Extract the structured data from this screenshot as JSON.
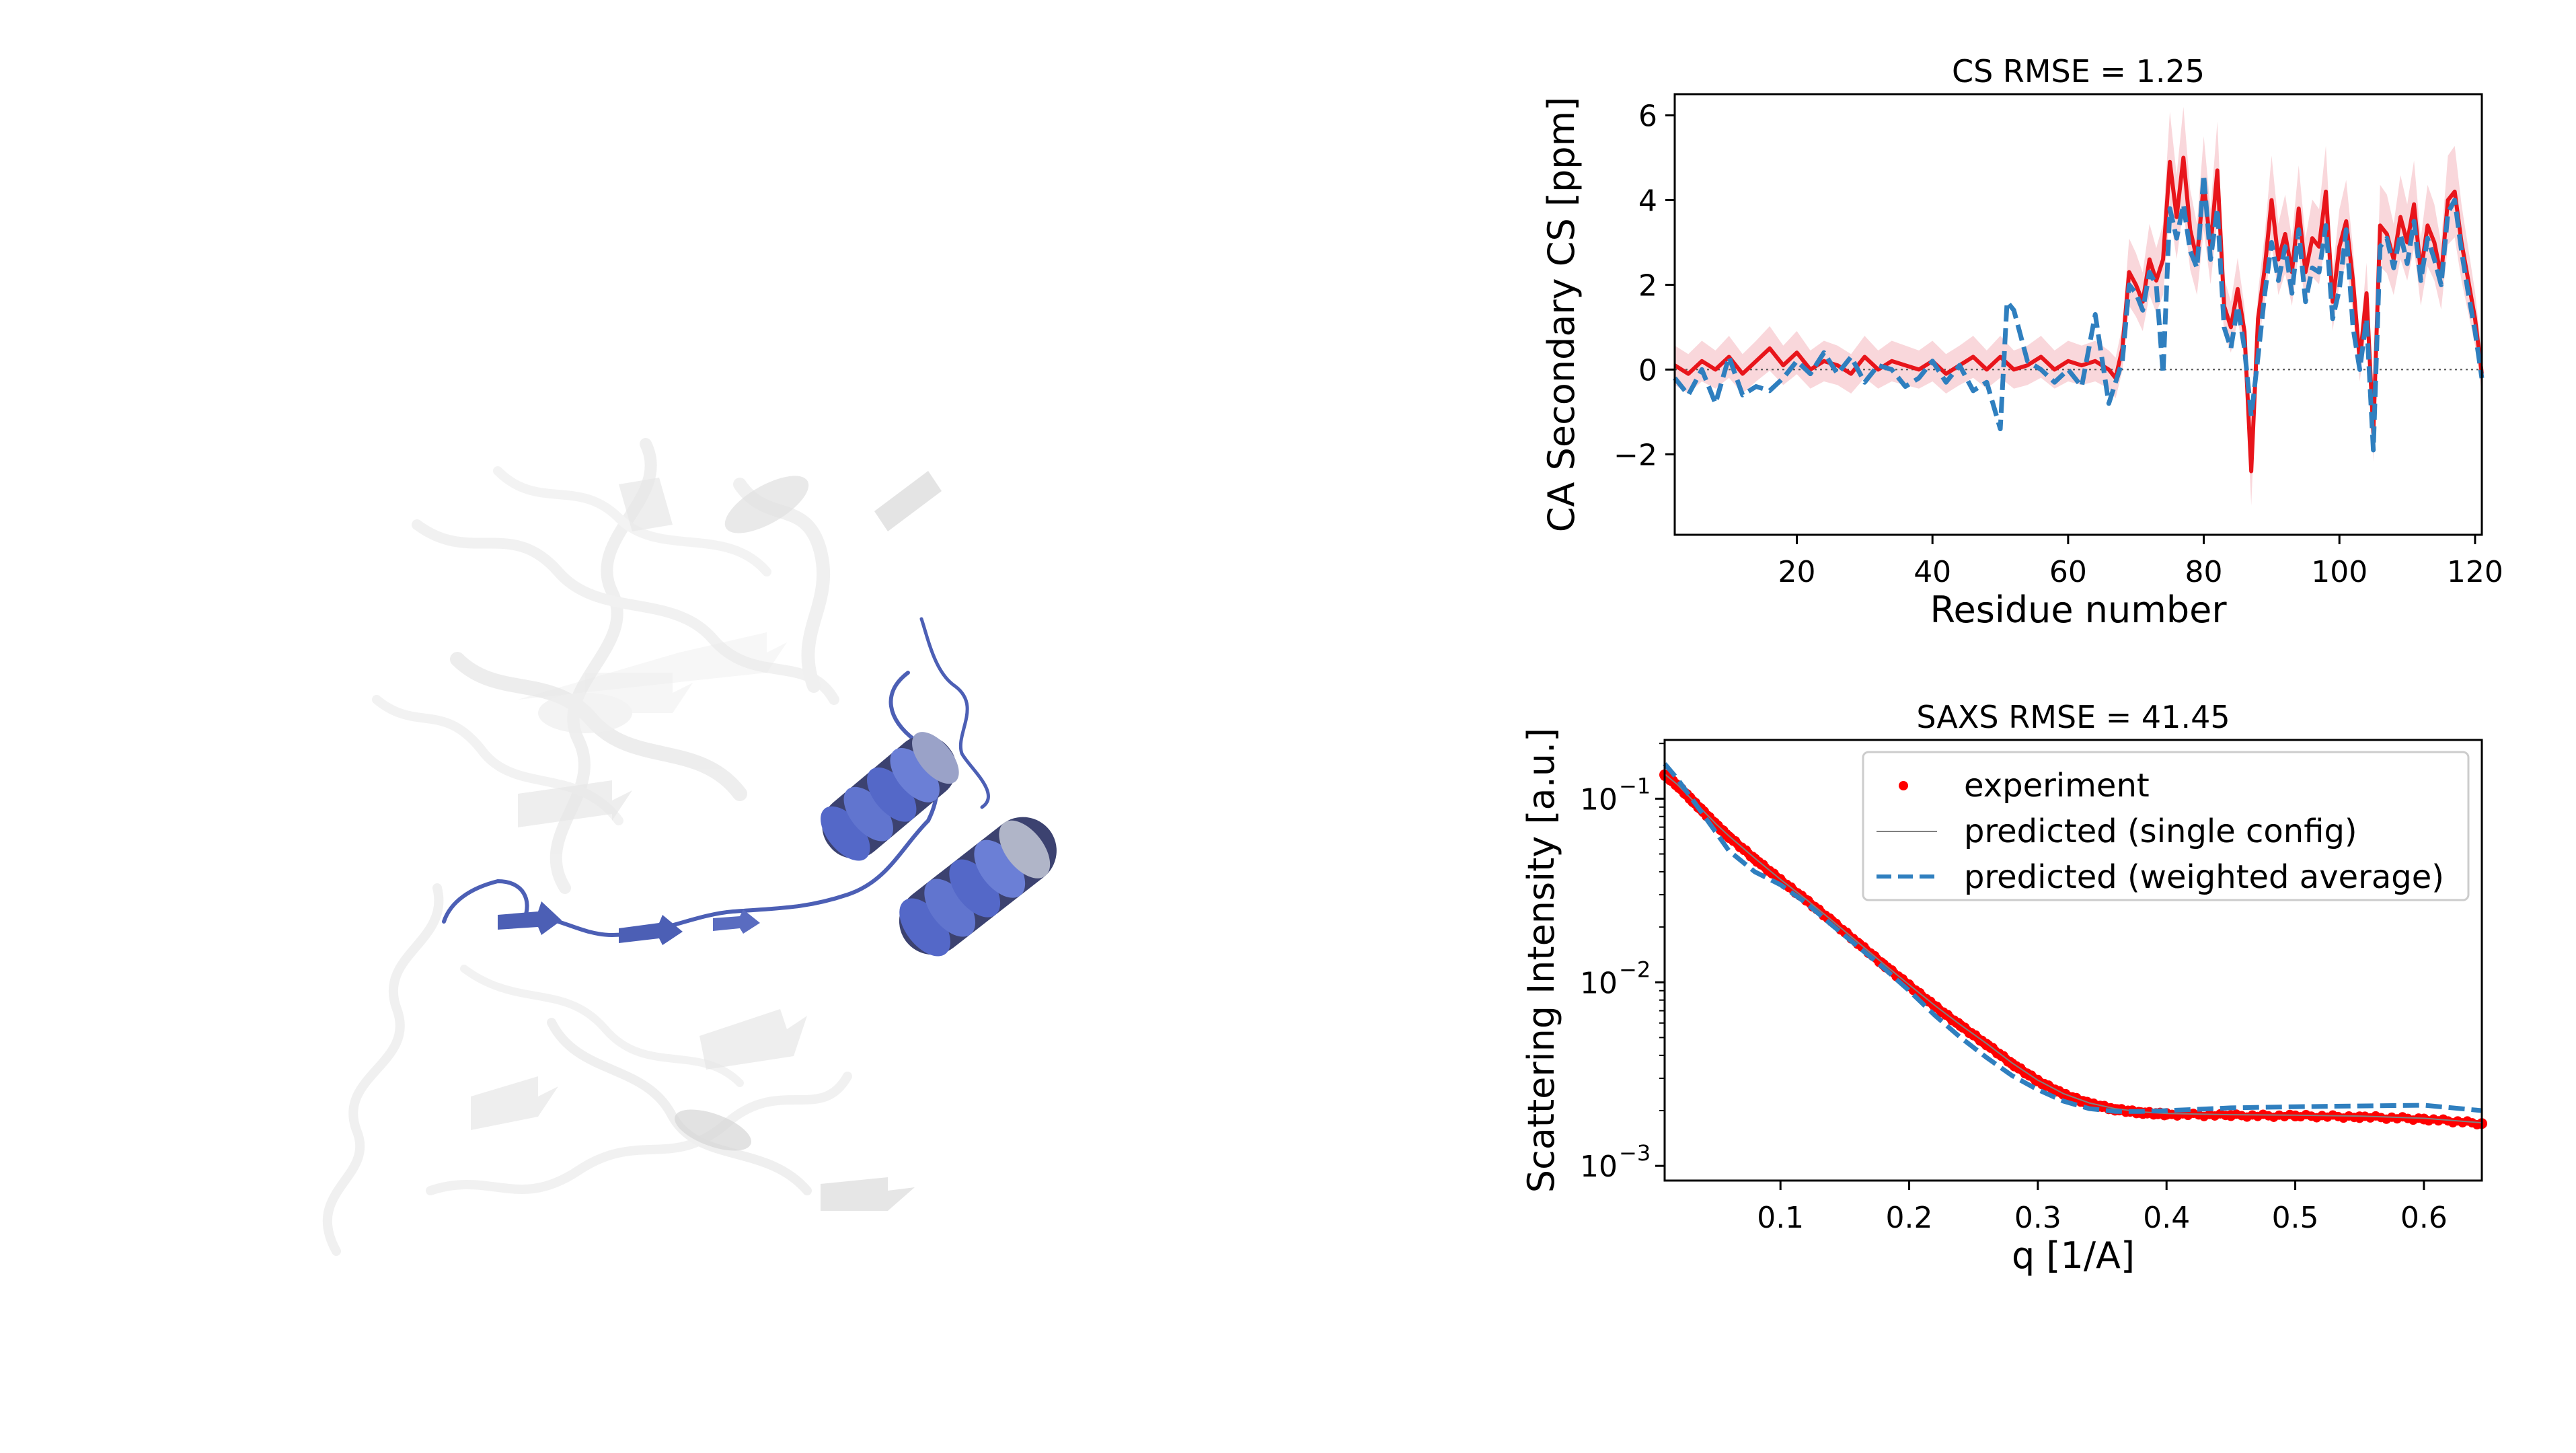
{
  "figure": {
    "protein_colors": {
      "helix": "#5468c8",
      "ghost": "#d9d9d9",
      "dark": "#3a3f6a"
    }
  },
  "chart_data": [
    {
      "type": "line",
      "title": "CS RMSE = 1.25",
      "xlabel": "Residue number",
      "ylabel": "CA Secondary CS [ppm]",
      "xlim": [
        2,
        121
      ],
      "ylim": [
        -3.9,
        6.5
      ],
      "xticks": [
        20,
        40,
        60,
        80,
        100,
        120
      ],
      "yticks": [
        -2,
        0,
        2,
        4,
        6
      ],
      "ytick_labels": [
        "−2",
        "0",
        "2",
        "4",
        "6"
      ],
      "zero_line": true,
      "band_color": "#f4b6bd",
      "series": [
        {
          "role": "experiment",
          "color": "#e8151b",
          "x": [
            2,
            4,
            6,
            8,
            10,
            12,
            14,
            16,
            18,
            20,
            22,
            24,
            26,
            28,
            30,
            32,
            34,
            36,
            38,
            40,
            42,
            44,
            46,
            48,
            50,
            52,
            54,
            56,
            58,
            60,
            62,
            64,
            66,
            67,
            68,
            69,
            70,
            71,
            72,
            73,
            74,
            75,
            76,
            77,
            78,
            79,
            80,
            81,
            82,
            83,
            84,
            85,
            86,
            87,
            88,
            89,
            90,
            91,
            92,
            93,
            94,
            95,
            96,
            97,
            98,
            99,
            100,
            101,
            102,
            103,
            104,
            105,
            106,
            107,
            108,
            109,
            110,
            111,
            112,
            113,
            114,
            115,
            116,
            117,
            118,
            119,
            120,
            121
          ],
          "y": [
            0.1,
            -0.1,
            0.2,
            0.0,
            0.3,
            -0.1,
            0.2,
            0.5,
            0.1,
            0.4,
            0.0,
            0.2,
            0.1,
            -0.1,
            0.3,
            0.0,
            0.2,
            0.1,
            0.0,
            0.2,
            -0.1,
            0.1,
            0.3,
            0.0,
            0.3,
            0.0,
            0.1,
            0.3,
            0.0,
            0.2,
            0.1,
            0.2,
            0.0,
            -0.2,
            0.5,
            2.3,
            2.0,
            1.6,
            2.6,
            2.1,
            2.6,
            4.9,
            3.6,
            5.0,
            3.3,
            2.6,
            4.4,
            2.9,
            4.7,
            1.5,
            1.0,
            1.9,
            0.9,
            -2.4,
            1.2,
            2.4,
            4.0,
            2.6,
            3.2,
            2.3,
            3.8,
            2.3,
            3.1,
            2.9,
            4.2,
            1.6,
            2.9,
            3.5,
            2.1,
            0.2,
            1.8,
            -1.5,
            3.4,
            3.2,
            2.6,
            3.6,
            3.0,
            3.9,
            2.3,
            3.4,
            3.0,
            2.2,
            4.0,
            4.2,
            3.0,
            2.1,
            1.2,
            -0.1
          ]
        },
        {
          "role": "predicted (weighted average)",
          "color": "#2f7fbf",
          "x": [
            2,
            4,
            6,
            8,
            10,
            12,
            14,
            16,
            18,
            20,
            22,
            24,
            26,
            28,
            30,
            32,
            34,
            36,
            38,
            40,
            42,
            44,
            46,
            48,
            50,
            51,
            52,
            54,
            56,
            58,
            60,
            62,
            64,
            66,
            67,
            68,
            69,
            70,
            71,
            72,
            73,
            74,
            75,
            76,
            77,
            78,
            79,
            80,
            81,
            82,
            83,
            84,
            85,
            86,
            87,
            88,
            89,
            90,
            91,
            92,
            93,
            94,
            95,
            96,
            97,
            98,
            99,
            100,
            101,
            102,
            103,
            104,
            105,
            106,
            107,
            108,
            109,
            110,
            111,
            112,
            113,
            114,
            115,
            116,
            117,
            118,
            119,
            120,
            121
          ],
          "y": [
            -0.2,
            -0.6,
            0.0,
            -0.8,
            0.3,
            -0.6,
            -0.4,
            -0.5,
            -0.2,
            0.2,
            -0.1,
            0.4,
            -0.1,
            0.3,
            -0.3,
            0.1,
            0.0,
            -0.4,
            -0.2,
            0.2,
            -0.3,
            0.1,
            -0.5,
            -0.3,
            -1.4,
            1.6,
            1.4,
            0.2,
            0.0,
            -0.3,
            0.0,
            -0.4,
            1.3,
            -0.8,
            -0.3,
            0.2,
            2.0,
            1.8,
            1.4,
            2.3,
            2.0,
            -0.1,
            3.8,
            3.1,
            3.9,
            2.8,
            2.4,
            4.6,
            2.6,
            3.8,
            1.0,
            0.5,
            1.5,
            0.5,
            -1.1,
            0.3,
            1.8,
            3.0,
            2.1,
            2.9,
            1.8,
            3.3,
            1.6,
            2.4,
            2.3,
            3.4,
            1.2,
            1.9,
            3.3,
            1.0,
            0.0,
            1.2,
            -1.9,
            2.9,
            3.1,
            2.4,
            3.2,
            2.5,
            3.5,
            2.1,
            3.1,
            2.6,
            2.0,
            3.7,
            4.0,
            2.8,
            1.8,
            0.9,
            -0.2
          ]
        }
      ]
    },
    {
      "type": "scatter",
      "title": "SAXS RMSE = 41.45",
      "xlabel": "q [1/A]",
      "ylabel": "Scattering Intensity [a.u.]",
      "xlim": [
        0.01,
        0.645
      ],
      "ylim_log10": [
        -3.08,
        -0.68
      ],
      "xticks": [
        0.1,
        0.2,
        0.3,
        0.4,
        0.5,
        0.6
      ],
      "yticks_base": "10",
      "yticks_exp": [
        "−1",
        "−2",
        "−3"
      ],
      "legend_position": "top-right",
      "legend": [
        "experiment",
        "predicted (single config)",
        "predicted (weighted average)"
      ],
      "series": [
        {
          "name": "experiment",
          "color": "#ff0000",
          "x": [
            0.01,
            0.02,
            0.03,
            0.04,
            0.05,
            0.06,
            0.08,
            0.1,
            0.12,
            0.14,
            0.16,
            0.18,
            0.2,
            0.22,
            0.24,
            0.26,
            0.28,
            0.3,
            0.32,
            0.34,
            0.36,
            0.38,
            0.4,
            0.45,
            0.5,
            0.55,
            0.6,
            0.645
          ],
          "y": [
            0.135,
            0.118,
            0.1,
            0.085,
            0.072,
            0.062,
            0.047,
            0.036,
            0.028,
            0.0215,
            0.0164,
            0.0125,
            0.0096,
            0.0074,
            0.0058,
            0.0046,
            0.0036,
            0.0029,
            0.00245,
            0.00218,
            0.00203,
            0.00195,
            0.00191,
            0.00188,
            0.00187,
            0.00185,
            0.0018,
            0.0017
          ]
        },
        {
          "name": "predicted (single config)",
          "color": "#808080",
          "x": [
            0.01,
            0.645
          ],
          "y": [
            0.136,
            0.0018
          ]
        },
        {
          "name": "predicted (weighted average)",
          "color": "#2f7fbf",
          "x": [
            0.01,
            0.02,
            0.04,
            0.06,
            0.08,
            0.1,
            0.12,
            0.14,
            0.16,
            0.18,
            0.2,
            0.22,
            0.24,
            0.26,
            0.28,
            0.3,
            0.32,
            0.34,
            0.36,
            0.38,
            0.4,
            0.45,
            0.5,
            0.55,
            0.6,
            0.645
          ],
          "y": [
            0.155,
            0.128,
            0.082,
            0.052,
            0.04,
            0.034,
            0.027,
            0.0205,
            0.0157,
            0.012,
            0.009,
            0.0066,
            0.005,
            0.0039,
            0.0031,
            0.0026,
            0.00225,
            0.00205,
            0.00198,
            0.00198,
            0.002,
            0.00207,
            0.0021,
            0.00212,
            0.00214,
            0.002
          ]
        }
      ]
    }
  ]
}
